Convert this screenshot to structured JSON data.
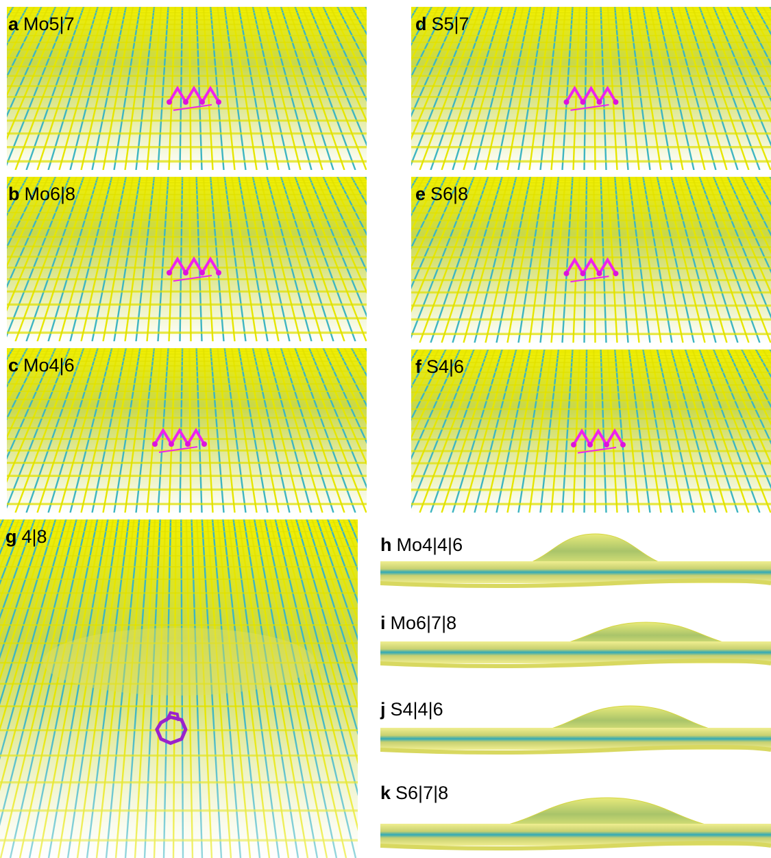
{
  "panels": [
    {
      "letter": "a",
      "label": "Mo5|7"
    },
    {
      "letter": "b",
      "label": "Mo6|8"
    },
    {
      "letter": "c",
      "label": "Mo4|6"
    },
    {
      "letter": "d",
      "label": "S5|7"
    },
    {
      "letter": "e",
      "label": "S6|8"
    },
    {
      "letter": "f",
      "label": "S4|6"
    },
    {
      "letter": "g",
      "label": "4|8"
    },
    {
      "letter": "h",
      "label": "Mo4|4|6"
    },
    {
      "letter": "i",
      "label": "Mo6|7|8"
    },
    {
      "letter": "j",
      "label": "S4|4|6"
    },
    {
      "letter": "k",
      "label": "S6|7|8"
    }
  ]
}
